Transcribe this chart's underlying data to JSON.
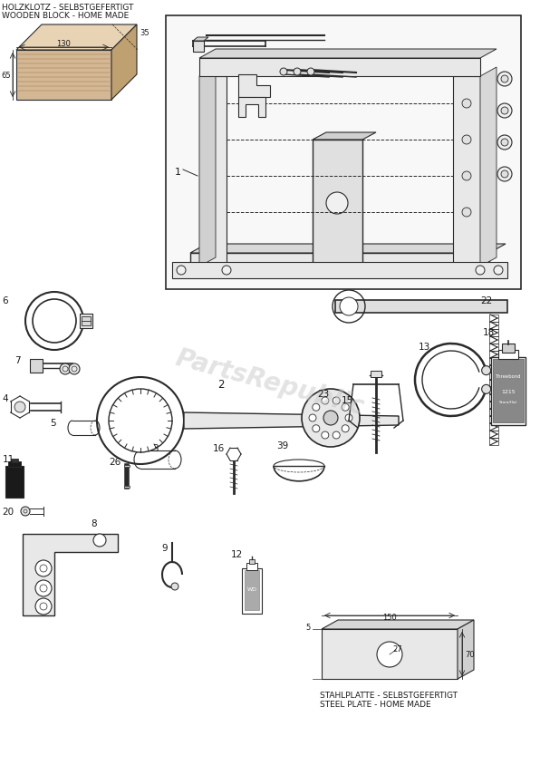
{
  "bg_color": "#ffffff",
  "line_color": "#2a2a2a",
  "text_color": "#1a1a1a",
  "watermark": "PartsRepublic",
  "watermark_color": "#c8c8c8",
  "fig_w": 5.96,
  "fig_h": 8.45,
  "dpi": 100,
  "wood_label1": "HOLZKLOTZ - SELBSTGEFERTIGT",
  "wood_label2": "WOODEN BLOCK - HOME MADE",
  "plate_label1": "STAHLPLATTE - SELBSTGEFERTIGT",
  "plate_label2": "STEEL PLATE - HOME MADE",
  "dim_130": "130",
  "dim_35": "35",
  "dim_65": "65",
  "dim_5": "5",
  "dim_27": "27",
  "dim_150": "150",
  "dim_70": "70",
  "part_nums": [
    "1",
    "2",
    "3",
    "4",
    "5",
    "6",
    "7",
    "8",
    "9",
    "11",
    "12",
    "13",
    "15",
    "16",
    "18",
    "20",
    "22",
    "23",
    "26",
    "39"
  ]
}
